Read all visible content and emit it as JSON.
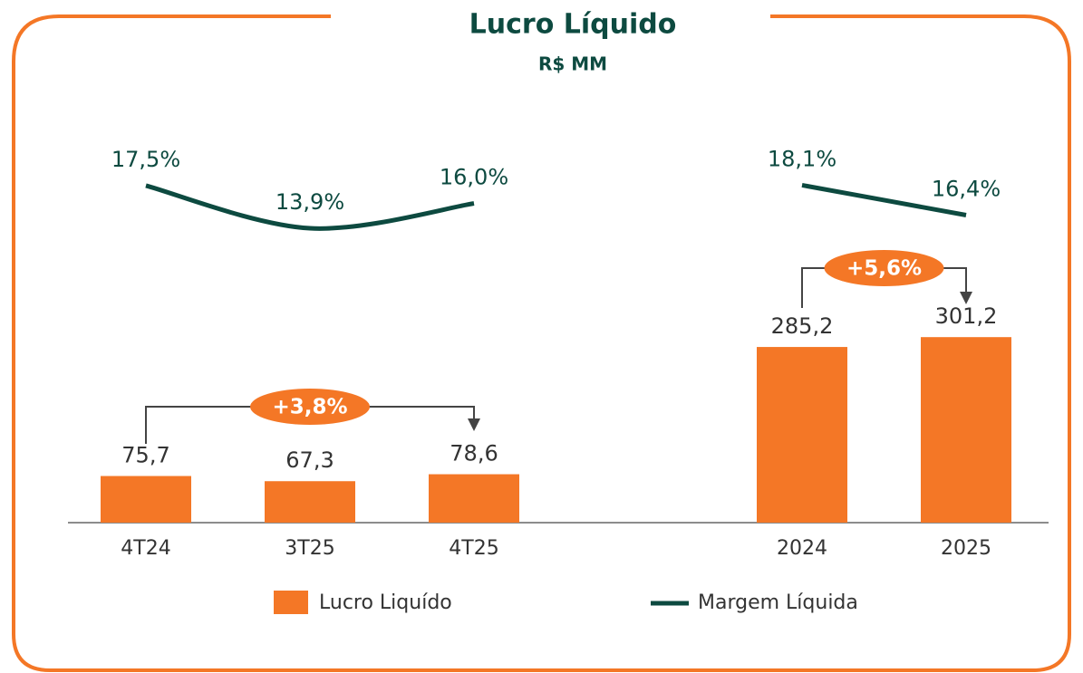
{
  "title": "Lucro Líquido",
  "subtitle": "R$ MM",
  "chart_data": [
    {
      "type": "bar_line",
      "categories": [
        "4T24",
        "3T25",
        "4T25"
      ],
      "ylim": [
        0,
        400
      ],
      "y2lim": [
        11,
        21.7
      ],
      "series": [
        {
          "name": "Lucro Liquído",
          "color": "#f47726",
          "values": [
            75.7,
            67.3,
            78.6
          ],
          "value_labels": [
            "75,7",
            "67,3",
            "78,6"
          ]
        },
        {
          "name": "Margem Líquida",
          "color": "#0d4a40",
          "axis": "y2",
          "values": [
            17.5,
            13.9,
            16.0
          ],
          "value_labels": [
            "17,5%",
            "13,9%",
            "16,0%"
          ]
        }
      ],
      "annotation": "+3,8%"
    },
    {
      "type": "bar_line",
      "categories": [
        "2024",
        "2025"
      ],
      "ylim": [
        0,
        400
      ],
      "y2lim": [
        13.7,
        20.9
      ],
      "series": [
        {
          "color": "#f47726",
          "values": [
            285.2,
            301.2
          ],
          "value_labels": [
            "285,2",
            "301,2"
          ]
        },
        {
          "color": "#0d4a40",
          "axis": "y2",
          "values": [
            18.1,
            16.4
          ],
          "value_labels": [
            "18,1%",
            "16,4%"
          ]
        }
      ],
      "annotation": "+5,6%"
    }
  ]
}
